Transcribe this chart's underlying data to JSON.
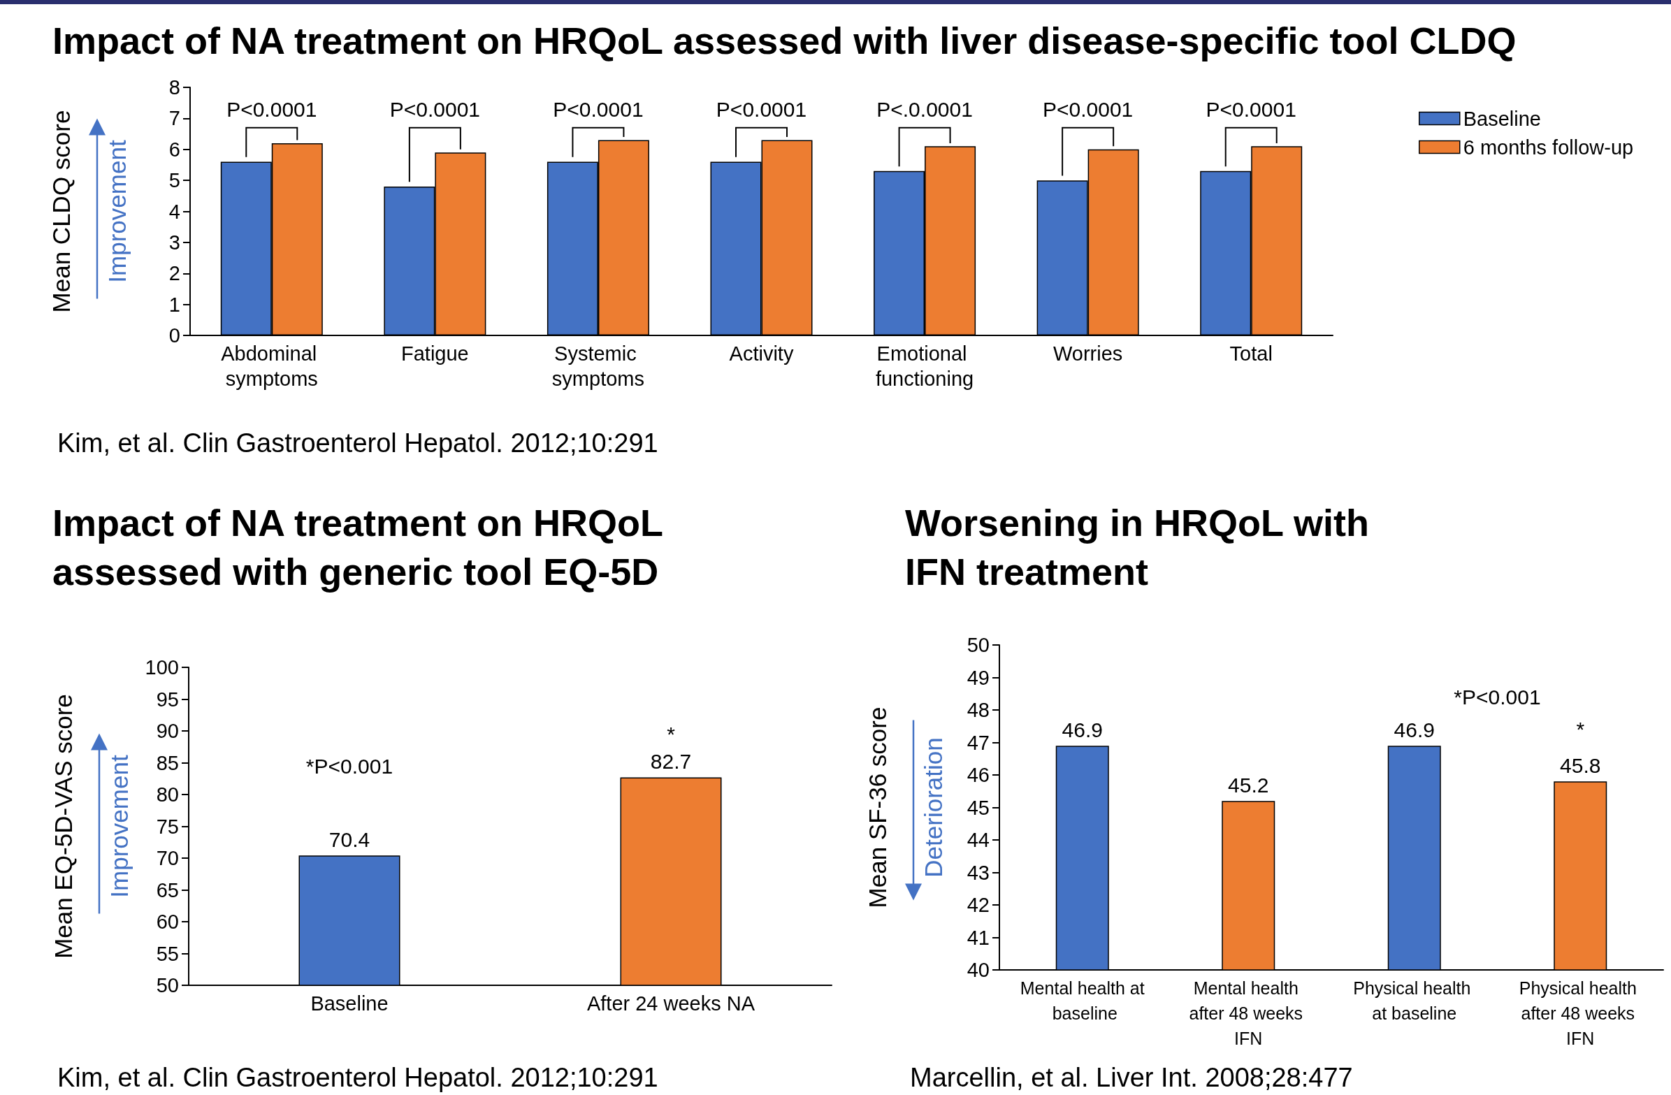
{
  "chart_data": [
    {
      "type": "bar",
      "title": "Impact of NA treatment on HRQoL assessed with liver disease-specific tool CLDQ",
      "ylabel": "Mean CLDQ score",
      "categories": [
        "Abdominal symptoms",
        "Fatigue",
        "Systemic symptoms",
        "Activity",
        "Emotional functioning",
        "Worries",
        "Total"
      ],
      "series": [
        {
          "name": "Baseline",
          "color": "#4472c4",
          "values": [
            5.6,
            4.8,
            5.6,
            5.6,
            5.3,
            5.0,
            5.3
          ]
        },
        {
          "name": "6 months follow-up",
          "color": "#ed7d31",
          "values": [
            6.2,
            5.9,
            6.3,
            6.3,
            6.1,
            6.0,
            6.1
          ]
        }
      ],
      "ylim": [
        0,
        8
      ],
      "yticks": [
        0,
        1,
        2,
        3,
        4,
        5,
        6,
        7,
        8
      ],
      "grid": false,
      "legend": "top right",
      "annotations": [
        "Improvement",
        "Kim, et al. Clin Gastroenterol Hepatol. 2012;10:291",
        "P<0.0001",
        "P<0.0001",
        "P<0.0001",
        "P<0.0001",
        "P<.0.0001",
        "P<0.0001",
        "P<0.0001"
      ]
    },
    {
      "type": "bar",
      "title": "Impact of NA treatment on HRQoL assessed with generic tool EQ-5D",
      "ylabel": "Mean EQ-5D-VAS score",
      "categories": [
        "Baseline",
        "After 24 weeks NA"
      ],
      "values": [
        70.4,
        82.7
      ],
      "colors": [
        "#4472c4",
        "#ed7d31"
      ],
      "ylim": [
        50,
        100
      ],
      "yticks": [
        50,
        55,
        60,
        65,
        70,
        75,
        80,
        85,
        90,
        95,
        100
      ],
      "grid": false,
      "data_labels": true,
      "annotations": [
        "Improvement",
        "Kim, et al. Clin Gastroenterol Hepatol. 2012;10:291",
        "*P<0.001",
        "*"
      ]
    },
    {
      "type": "bar",
      "title": "Worsening in HRQoL with IFN treatment",
      "ylabel": "Mean SF-36 score",
      "categories": [
        "Mental health at baseline",
        "Mental health after 48 weeks IFN",
        "Physical health at baseline",
        "Physical health after 48 weeks IFN"
      ],
      "values": [
        46.9,
        45.2,
        46.9,
        45.8
      ],
      "colors": [
        "#4472c4",
        "#ed7d31",
        "#4472c4",
        "#ed7d31"
      ],
      "ylim": [
        40,
        50
      ],
      "yticks": [
        40,
        41,
        42,
        43,
        44,
        45,
        46,
        47,
        48,
        49,
        50
      ],
      "grid": false,
      "data_labels": true,
      "annotations": [
        "Deterioration",
        "Marcellin, et al. Liver Int. 2008;28:477",
        "*P<0.001",
        "*"
      ]
    }
  ]
}
